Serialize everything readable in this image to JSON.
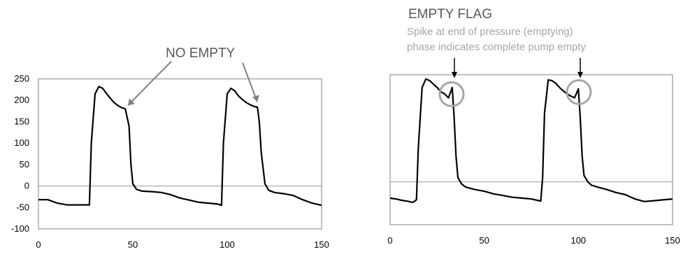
{
  "chart_data": [
    {
      "type": "line",
      "title": "",
      "xlabel": "",
      "ylabel": "",
      "xlim": [
        0,
        150
      ],
      "ylim": [
        -100,
        250
      ],
      "x_ticks": [
        0,
        50,
        100,
        150
      ],
      "y_ticks": [
        -100,
        -50,
        0,
        50,
        100,
        150,
        200,
        250
      ],
      "grid": false,
      "zero_line": true,
      "series": [
        {
          "x": [
            0,
            5,
            10,
            15,
            20,
            25,
            27,
            28,
            30,
            32,
            34,
            36,
            38,
            40,
            42,
            44,
            46,
            48,
            49,
            50,
            52,
            55,
            60,
            65,
            70,
            75,
            80,
            85,
            90,
            95,
            97,
            98,
            100,
            102,
            104,
            106,
            108,
            110,
            112,
            114,
            116,
            117,
            118,
            120,
            122,
            125,
            130,
            135,
            140,
            145,
            150
          ],
          "y": [
            -32,
            -32,
            -40,
            -44,
            -44,
            -44,
            -44,
            100,
            215,
            232,
            228,
            216,
            205,
            195,
            188,
            183,
            180,
            140,
            50,
            5,
            -8,
            -12,
            -13,
            -15,
            -20,
            -28,
            -33,
            -38,
            -40,
            -42,
            -45,
            100,
            215,
            228,
            222,
            210,
            202,
            195,
            190,
            186,
            184,
            150,
            80,
            5,
            -10,
            -15,
            -18,
            -22,
            -32,
            -40,
            -45
          ]
        }
      ],
      "annotations": [
        {
          "text": "NO EMPTY"
        }
      ]
    },
    {
      "type": "line",
      "title": "",
      "xlabel": "",
      "ylabel": "",
      "xlim": [
        0,
        150
      ],
      "ylim": [
        -100,
        250
      ],
      "x_ticks": [
        0,
        50,
        100,
        150
      ],
      "y_ticks": [],
      "grid": false,
      "zero_line": true,
      "series": [
        {
          "x": [
            0,
            3,
            6,
            9,
            12,
            14,
            15,
            17,
            19,
            21,
            23,
            25,
            27,
            29,
            31,
            33,
            34,
            35,
            36,
            38,
            40,
            45,
            50,
            55,
            60,
            65,
            70,
            75,
            80,
            81,
            82,
            84,
            86,
            88,
            90,
            92,
            94,
            96,
            98,
            100,
            101,
            102,
            103,
            105,
            107,
            110,
            115,
            120,
            125,
            130,
            135,
            140,
            145,
            150
          ],
          "y": [
            -38,
            -40,
            -43,
            -45,
            -48,
            -42,
            80,
            220,
            240,
            236,
            228,
            220,
            210,
            205,
            196,
            220,
            150,
            60,
            10,
            -5,
            -12,
            -18,
            -22,
            -28,
            -32,
            -36,
            -38,
            -40,
            -45,
            10,
            160,
            238,
            236,
            230,
            220,
            212,
            205,
            200,
            196,
            217,
            150,
            60,
            15,
            0,
            -8,
            -12,
            -18,
            -25,
            -30,
            -40,
            -46,
            -44,
            -42,
            -40
          ]
        }
      ],
      "annotations": [
        {
          "text": "EMPTY FLAG"
        },
        {
          "text": "Spike at end of pressure (emptying) phase indicates complete pump empty"
        }
      ]
    }
  ],
  "labels": {
    "no_empty": "NO EMPTY",
    "empty_flag": "EMPTY FLAG",
    "empty_desc_line1": "Spike at end of pressure (emptying)",
    "empty_desc_line2": "phase indicates complete pump empty"
  },
  "colors": {
    "line": "#000000",
    "zero_line": "#999999",
    "plot_border": "#808080",
    "arrow": "#808080",
    "circle": "#a6a6a6",
    "annotation_title": "#595959",
    "annotation_desc": "#a6a6a6"
  }
}
